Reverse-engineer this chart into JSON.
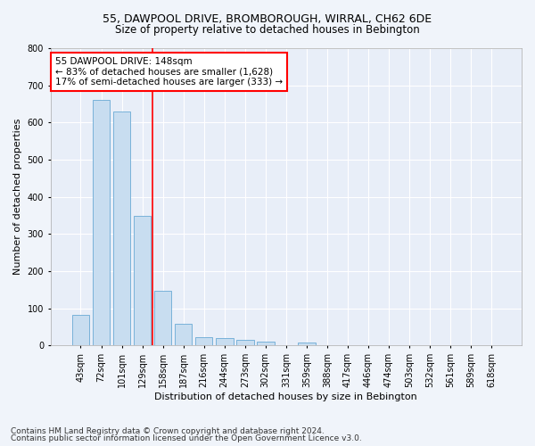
{
  "title": "55, DAWPOOL DRIVE, BROMBOROUGH, WIRRAL, CH62 6DE",
  "subtitle": "Size of property relative to detached houses in Bebington",
  "xlabel": "Distribution of detached houses by size in Bebington",
  "ylabel": "Number of detached properties",
  "bar_color": "#c8ddf0",
  "bar_edge_color": "#6aaad4",
  "background_color": "#e8eef8",
  "grid_color": "#ffffff",
  "fig_background": "#f0f4fa",
  "categories": [
    "43sqm",
    "72sqm",
    "101sqm",
    "129sqm",
    "158sqm",
    "187sqm",
    "216sqm",
    "244sqm",
    "273sqm",
    "302sqm",
    "331sqm",
    "359sqm",
    "388sqm",
    "417sqm",
    "446sqm",
    "474sqm",
    "503sqm",
    "532sqm",
    "561sqm",
    "589sqm",
    "618sqm"
  ],
  "values": [
    83,
    660,
    630,
    348,
    148,
    58,
    22,
    20,
    15,
    10,
    0,
    8,
    0,
    0,
    0,
    0,
    0,
    0,
    0,
    0,
    0
  ],
  "ylim": [
    0,
    800
  ],
  "yticks": [
    0,
    100,
    200,
    300,
    400,
    500,
    600,
    700,
    800
  ],
  "property_label": "55 DAWPOOL DRIVE: 148sqm",
  "annotation_line1": "← 83% of detached houses are smaller (1,628)",
  "annotation_line2": "17% of semi-detached houses are larger (333) →",
  "red_line_bin_index": 4,
  "footnote1": "Contains HM Land Registry data © Crown copyright and database right 2024.",
  "footnote2": "Contains public sector information licensed under the Open Government Licence v3.0.",
  "title_fontsize": 9,
  "subtitle_fontsize": 8.5,
  "axis_label_fontsize": 8,
  "tick_fontsize": 7,
  "annotation_fontsize": 7.5,
  "footnote_fontsize": 6.5
}
